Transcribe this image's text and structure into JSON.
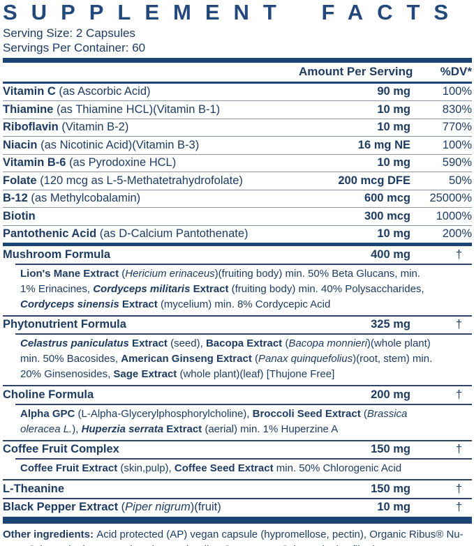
{
  "page": {
    "title": "SUPPLEMENT FACTS",
    "serving_size": "Serving Size: 2 Capsules",
    "servings_per_container": "Servings Per Container: 60"
  },
  "columns": {
    "amount": "Amount Per Serving",
    "dv": "%DV*"
  },
  "symbols": {
    "dagger": "†"
  },
  "colors": {
    "title": "#23487c",
    "text": "#1e3c62",
    "bar": "#1a4572",
    "divider_thin": "#8b94a2",
    "divider_strong": "#2f4668"
  },
  "table": {
    "rows": [
      {
        "id": "vitamin-c",
        "name": [
          {
            "t": "Vitamin C ",
            "s": "b"
          },
          {
            "t": "(as Ascorbic Acid)",
            "s": "r"
          }
        ],
        "amount": "90 mg",
        "dv": "100%",
        "separator_after": "thin"
      },
      {
        "id": "thiamine",
        "name": [
          {
            "t": "Thiamine ",
            "s": "b"
          },
          {
            "t": "(as Thiamine HCL)(Vitamin B-1)",
            "s": "r"
          }
        ],
        "amount": "10 mg",
        "dv": "830%",
        "separator_after": "thin"
      },
      {
        "id": "riboflavin",
        "name": [
          {
            "t": "Riboflavin ",
            "s": "b"
          },
          {
            "t": "(Vitamin B-2)",
            "s": "r"
          }
        ],
        "amount": "10 mg",
        "dv": "770%",
        "separator_after": "thin"
      },
      {
        "id": "niacin",
        "name": [
          {
            "t": "Niacin ",
            "s": "b"
          },
          {
            "t": "(as Nicotinic Acid)(Vitamin B-3)",
            "s": "r"
          }
        ],
        "amount": "16 mg NE",
        "dv": "100%",
        "separator_after": "thin"
      },
      {
        "id": "vitamin-b6",
        "name": [
          {
            "t": "Vitamin B-6 ",
            "s": "b"
          },
          {
            "t": "(as Pyrodoxine HCL)",
            "s": "r"
          }
        ],
        "amount": "10 mg",
        "dv": "590%",
        "separator_after": "thin"
      },
      {
        "id": "folate",
        "name": [
          {
            "t": "Folate ",
            "s": "b"
          },
          {
            "t": "(120 mcg as L-5-Methatetrahydrofolate)",
            "s": "r"
          }
        ],
        "amount": "200 mcg DFE",
        "dv": "50%",
        "separator_after": "thin"
      },
      {
        "id": "b12",
        "name": [
          {
            "t": "B-12 ",
            "s": "b"
          },
          {
            "t": "(as Methylcobalamin)",
            "s": "r"
          }
        ],
        "amount": "600 mcg",
        "dv": "25000%",
        "separator_after": "thin"
      },
      {
        "id": "biotin",
        "name": [
          {
            "t": "Biotin",
            "s": "b"
          }
        ],
        "amount": "300 mcg",
        "dv": "1000%",
        "separator_after": "thin"
      },
      {
        "id": "pantothenic-acid",
        "name": [
          {
            "t": "Pantothenic Acid ",
            "s": "b"
          },
          {
            "t": "(as D-Calcium Pantothenate)",
            "s": "r"
          }
        ],
        "amount": "10 mg",
        "dv": "200%",
        "separator_after": "bar"
      },
      {
        "id": "mushroom-formula",
        "name": [
          {
            "t": "Mushroom Formula",
            "s": "b"
          }
        ],
        "amount": "400 mg",
        "dv": "†",
        "separator_after": "strong",
        "sub": [
          {
            "t": "Lion's Mane Extract ",
            "s": "b"
          },
          {
            "t": "(",
            "s": "r"
          },
          {
            "t": "Hericium erinaceus",
            "s": "i"
          },
          {
            "t": ")(fruiting body) min. 50% Beta Glucans, min. 1% Erinacines, ",
            "s": "r"
          },
          {
            "t": "Cordyceps militaris",
            "s": "bi"
          },
          {
            "t": " Extract ",
            "s": "b"
          },
          {
            "t": "(fruiting body) min. 40% Polysaccharides, ",
            "s": "r"
          },
          {
            "t": "Cordyceps sinensis",
            "s": "bi"
          },
          {
            "t": " Extract ",
            "s": "b"
          },
          {
            "t": "(mycelium) min. 8% Cordycepic Acid",
            "s": "r"
          }
        ]
      },
      {
        "id": "phytonutrient-formula",
        "name": [
          {
            "t": "Phytonutrient Formula",
            "s": "b"
          }
        ],
        "amount": "325 mg",
        "dv": "†",
        "separator_after": "strong",
        "sub": [
          {
            "t": "Celastrus paniculatus",
            "s": "bi"
          },
          {
            "t": " Extract ",
            "s": "b"
          },
          {
            "t": "(seed), ",
            "s": "r"
          },
          {
            "t": "Bacopa Extract ",
            "s": "b"
          },
          {
            "t": "(",
            "s": "r"
          },
          {
            "t": "Bacopa monnieri",
            "s": "i"
          },
          {
            "t": ")(whole plant) min. 50% Bacosides, ",
            "s": "r"
          },
          {
            "t": "American Ginseng Extract ",
            "s": "b"
          },
          {
            "t": "(",
            "s": "r"
          },
          {
            "t": "Panax quinquefolius",
            "s": "i"
          },
          {
            "t": ")(root, stem) min. 20% Ginsenosides, ",
            "s": "r"
          },
          {
            "t": "Sage Extract ",
            "s": "b"
          },
          {
            "t": "(whole plant)(leaf) [Thujone Free]",
            "s": "r"
          }
        ]
      },
      {
        "id": "choline-formula",
        "name": [
          {
            "t": "Choline Formula",
            "s": "b"
          }
        ],
        "amount": "200 mg",
        "dv": "†",
        "separator_after": "strong",
        "sub": [
          {
            "t": "Alpha GPC ",
            "s": "b"
          },
          {
            "t": "(L-Alpha-Glycerylphosphorylcholine), ",
            "s": "r"
          },
          {
            "t": "Broccoli Seed Extract ",
            "s": "b"
          },
          {
            "t": "(",
            "s": "r"
          },
          {
            "t": "Brassica oleracea L.",
            "s": "i"
          },
          {
            "t": "), ",
            "s": "r"
          },
          {
            "t": "Huperzia serrata",
            "s": "bi"
          },
          {
            "t": " Extract ",
            "s": "b"
          },
          {
            "t": "(aerial) min. 1% Huperzine A",
            "s": "r"
          }
        ]
      },
      {
        "id": "coffee-fruit-complex",
        "name": [
          {
            "t": "Coffee Fruit Complex",
            "s": "b"
          }
        ],
        "amount": "150 mg",
        "dv": "†",
        "separator_after": "strong",
        "sub": [
          {
            "t": "Coffee Fruit Extract ",
            "s": "b"
          },
          {
            "t": "(skin,pulp), ",
            "s": "r"
          },
          {
            "t": "Coffee Seed Extract ",
            "s": "b"
          },
          {
            "t": "min. 50% Chlorogenic Acid",
            "s": "r"
          }
        ]
      },
      {
        "id": "l-theanine",
        "name": [
          {
            "t": "L-Theanine",
            "s": "b"
          }
        ],
        "amount": "150 mg",
        "dv": "†",
        "separator_after": "strong"
      },
      {
        "id": "black-pepper-extract",
        "name": [
          {
            "t": "Black Pepper Extract ",
            "s": "b"
          },
          {
            "t": "(",
            "s": "r"
          },
          {
            "t": "Piper nigrum",
            "s": "i"
          },
          {
            "t": ")(fruit)",
            "s": "r"
          }
        ],
        "amount": "10 mg",
        "dv": "†",
        "separator_after": "none"
      }
    ]
  },
  "footnote": {
    "segments": [
      {
        "t": "Other ingredients: ",
        "s": "b"
      },
      {
        "t": "Acid protected (AP) vegan capsule (hypromellose, pectin), Organic Ribus® Nu-RICE® (organic rice extract) and Organic Ribus® Nu-FLOW® (organic rice fiber).",
        "s": "r"
      }
    ]
  }
}
